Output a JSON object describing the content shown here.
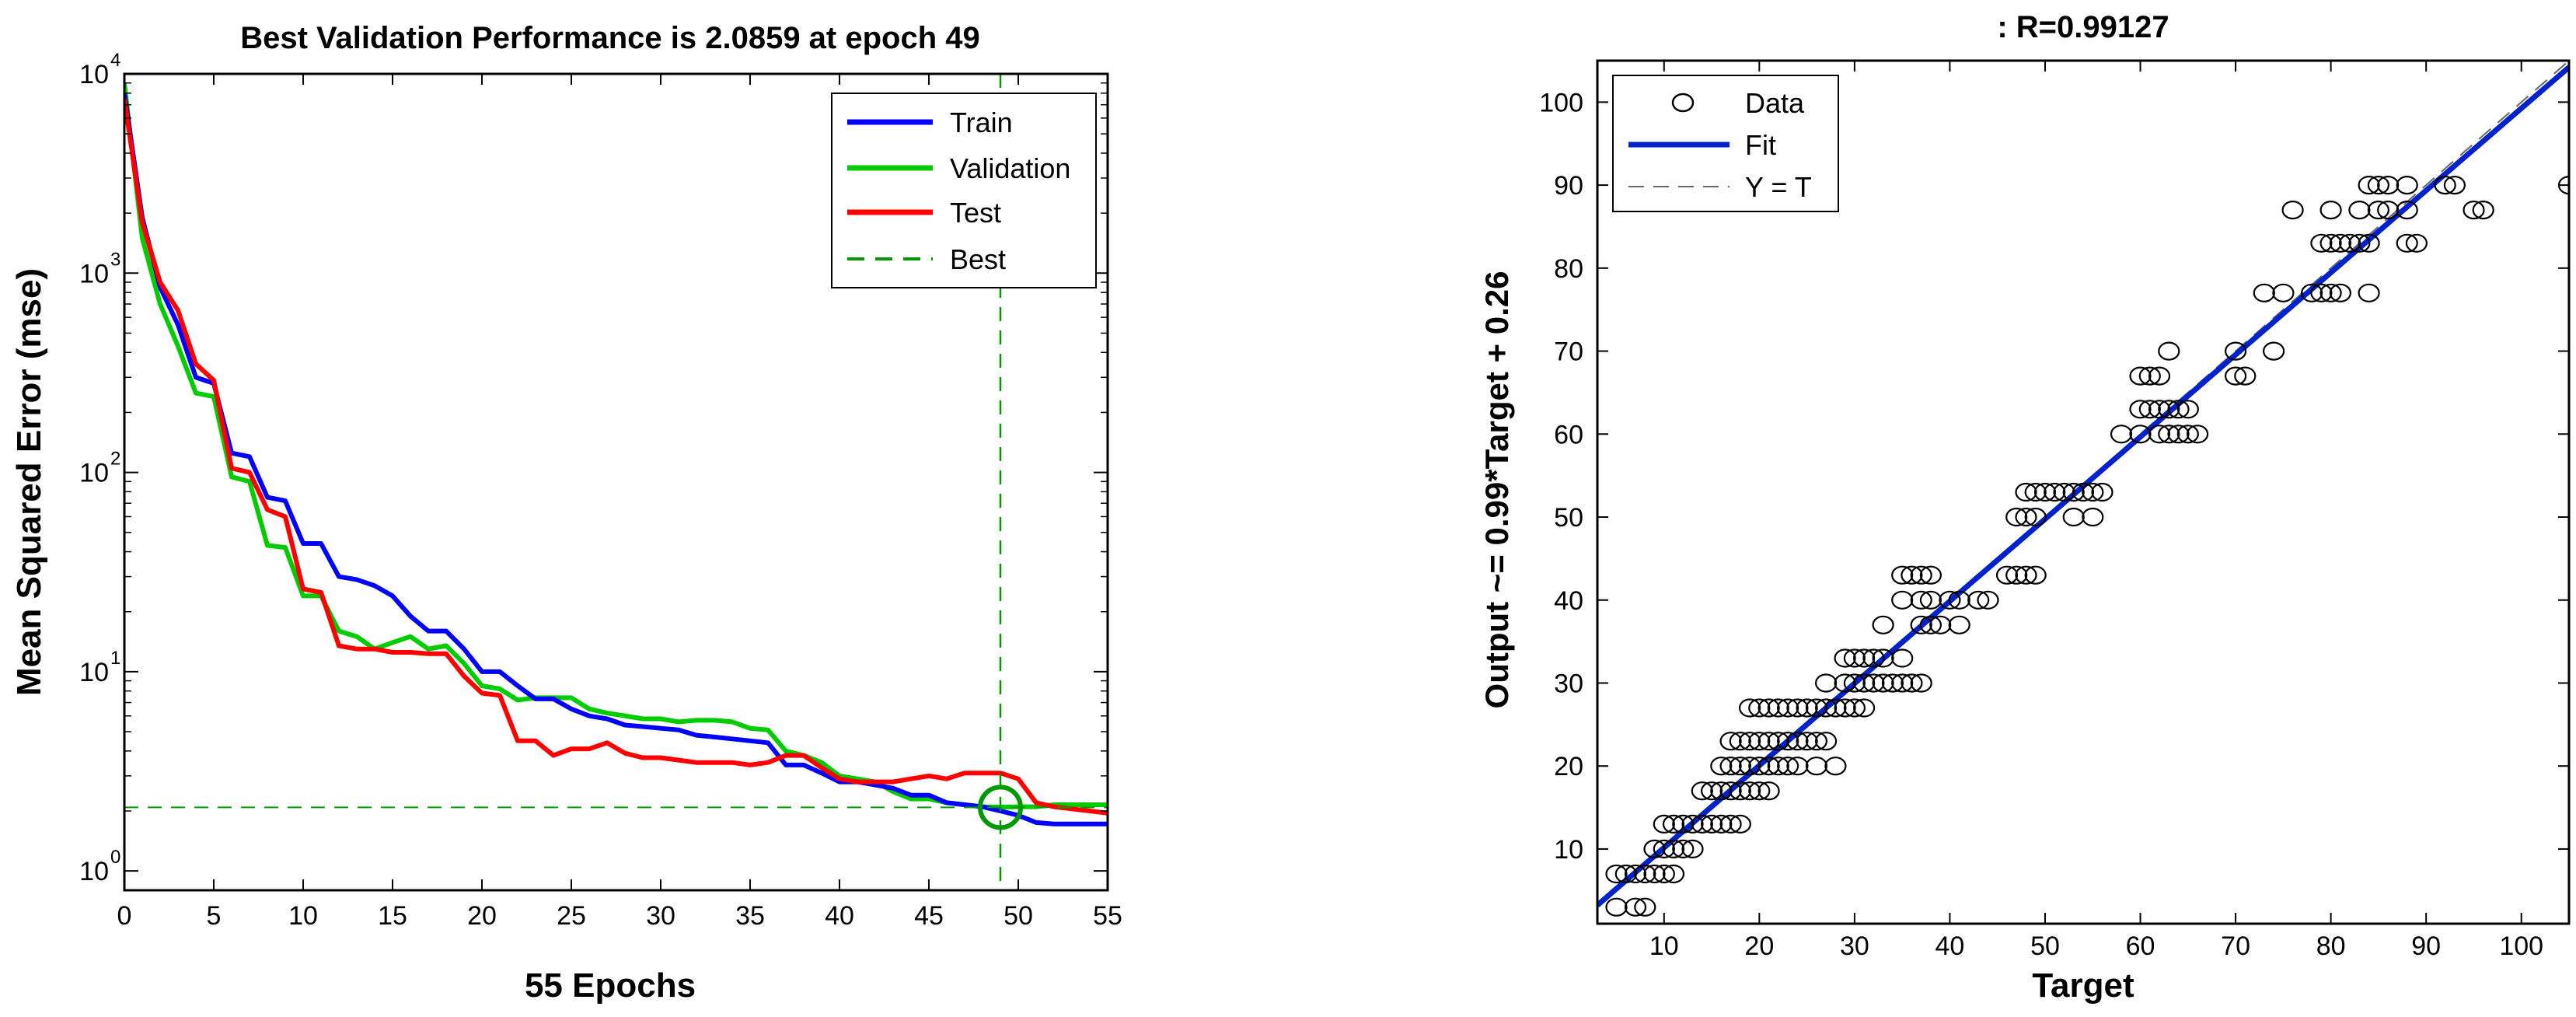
{
  "colors": {
    "train": "#0000ff",
    "validation": "#00cc00",
    "test": "#ff0000",
    "best": "#009900",
    "fit": "#0022cc",
    "axis": "#000000",
    "background": "#ffffff"
  },
  "chart_data": [
    {
      "type": "line",
      "title": "Best Validation Performance is 2.0859 at epoch 49",
      "xlabel": "55 Epochs",
      "ylabel": "Mean Squared Error  (mse)",
      "yscale": "log",
      "xlim": [
        0,
        55
      ],
      "ylim": [
        0.8,
        10000
      ],
      "xticks": [
        0,
        5,
        10,
        15,
        20,
        25,
        30,
        35,
        40,
        45,
        50,
        55
      ],
      "xtick_labels": [
        "0",
        "5",
        "10",
        "15",
        "20",
        "25",
        "30",
        "35",
        "40",
        "45",
        "50",
        "55"
      ],
      "ytick_base": "10",
      "ytick_exponents": [
        "0",
        "1",
        "2",
        "3",
        "4"
      ],
      "best": {
        "epoch": 49,
        "value": 2.0859,
        "label": "Best"
      },
      "legend": {
        "placement": "top-right",
        "entries": [
          "Train",
          "Validation",
          "Test",
          "Best"
        ]
      },
      "x": [
        0,
        1,
        2,
        3,
        4,
        5,
        6,
        7,
        8,
        9,
        10,
        11,
        12,
        13,
        14,
        15,
        16,
        17,
        18,
        19,
        20,
        21,
        22,
        23,
        24,
        25,
        26,
        27,
        28,
        29,
        30,
        31,
        32,
        33,
        34,
        35,
        36,
        37,
        38,
        39,
        40,
        41,
        42,
        43,
        44,
        45,
        46,
        47,
        48,
        49,
        50,
        51,
        52,
        53,
        54,
        55
      ],
      "series": [
        {
          "name": "Train",
          "values": [
            8000,
            1900,
            850,
            550,
            300,
            280,
            125,
            120,
            75,
            72,
            44,
            44,
            30,
            29,
            27,
            24,
            19,
            16,
            16,
            13,
            10,
            10,
            8.5,
            7.3,
            7.3,
            6.5,
            6,
            5.8,
            5.4,
            5.3,
            5.2,
            5.1,
            4.8,
            4.7,
            4.6,
            4.5,
            4.4,
            3.4,
            3.4,
            3.1,
            2.8,
            2.8,
            2.7,
            2.6,
            2.4,
            2.4,
            2.2,
            2.15,
            2.1,
            2.0,
            1.9,
            1.75,
            1.72,
            1.72,
            1.72,
            1.72
          ]
        },
        {
          "name": "Validation",
          "values": [
            9000,
            1500,
            700,
            430,
            250,
            240,
            95,
            90,
            43,
            42,
            24,
            24,
            16,
            15,
            13,
            14,
            15,
            13,
            13.5,
            11,
            8.5,
            8.2,
            7.2,
            7.4,
            7.4,
            7.4,
            6.5,
            6.2,
            6,
            5.8,
            5.8,
            5.6,
            5.7,
            5.7,
            5.6,
            5.2,
            5.1,
            4.0,
            3.8,
            3.5,
            3.0,
            2.9,
            2.8,
            2.5,
            2.3,
            2.3,
            2.2,
            2.15,
            2.1,
            2.09,
            2.1,
            2.1,
            2.15,
            2.15,
            2.15,
            2.15
          ]
        },
        {
          "name": "Test",
          "values": [
            7500,
            1800,
            900,
            650,
            350,
            290,
            105,
            100,
            65,
            60,
            26,
            25,
            13.5,
            13,
            13,
            12.5,
            12.5,
            12.3,
            12.3,
            9.5,
            7.8,
            7.6,
            4.5,
            4.5,
            3.8,
            4.1,
            4.1,
            4.4,
            3.9,
            3.7,
            3.7,
            3.6,
            3.5,
            3.5,
            3.5,
            3.4,
            3.5,
            3.8,
            3.8,
            3.3,
            2.9,
            2.8,
            2.8,
            2.8,
            2.9,
            3.0,
            2.9,
            3.1,
            3.1,
            3.1,
            2.9,
            2.2,
            2.1,
            2.05,
            2.0,
            1.95
          ]
        }
      ]
    },
    {
      "type": "scatter",
      "title": ": R=0.99127",
      "xlabel": "Target",
      "ylabel": "Output ~= 0.99*Target + 0.26",
      "xlim": [
        3,
        105
      ],
      "ylim": [
        1,
        105
      ],
      "xticks": [
        10,
        20,
        30,
        40,
        50,
        60,
        70,
        80,
        90,
        100
      ],
      "xtick_labels": [
        "10",
        "20",
        "30",
        "40",
        "50",
        "60",
        "70",
        "80",
        "90",
        "100"
      ],
      "yticks": [
        10,
        20,
        30,
        40,
        50,
        60,
        70,
        80,
        90,
        100
      ],
      "ytick_labels": [
        "10",
        "20",
        "30",
        "40",
        "50",
        "60",
        "70",
        "80",
        "90",
        "100"
      ],
      "fit": {
        "slope": 0.99,
        "intercept": 0.26
      },
      "legend": {
        "placement": "top-left",
        "entries": [
          "Data",
          "Fit",
          "Y = T"
        ]
      },
      "points": [
        [
          5,
          3
        ],
        [
          7,
          3
        ],
        [
          8,
          3
        ],
        [
          5,
          7
        ],
        [
          6,
          7
        ],
        [
          7,
          7
        ],
        [
          8,
          7
        ],
        [
          9,
          7
        ],
        [
          10,
          7
        ],
        [
          11,
          7
        ],
        [
          9,
          10
        ],
        [
          10,
          10
        ],
        [
          11,
          10
        ],
        [
          12,
          10
        ],
        [
          13,
          10
        ],
        [
          10,
          13
        ],
        [
          11,
          13
        ],
        [
          12,
          13
        ],
        [
          13,
          13
        ],
        [
          14,
          13
        ],
        [
          15,
          13
        ],
        [
          16,
          13
        ],
        [
          17,
          13
        ],
        [
          18,
          13
        ],
        [
          14,
          17
        ],
        [
          15,
          17
        ],
        [
          16,
          17
        ],
        [
          17,
          17
        ],
        [
          18,
          17
        ],
        [
          19,
          17
        ],
        [
          20,
          17
        ],
        [
          21,
          17
        ],
        [
          16,
          20
        ],
        [
          17,
          20
        ],
        [
          18,
          20
        ],
        [
          19,
          20
        ],
        [
          20,
          20
        ],
        [
          21,
          20
        ],
        [
          22,
          20
        ],
        [
          23,
          20
        ],
        [
          24,
          20
        ],
        [
          26,
          20
        ],
        [
          28,
          20
        ],
        [
          17,
          23
        ],
        [
          18,
          23
        ],
        [
          19,
          23
        ],
        [
          20,
          23
        ],
        [
          21,
          23
        ],
        [
          22,
          23
        ],
        [
          23,
          23
        ],
        [
          24,
          23
        ],
        [
          25,
          23
        ],
        [
          26,
          23
        ],
        [
          27,
          23
        ],
        [
          19,
          27
        ],
        [
          20,
          27
        ],
        [
          21,
          27
        ],
        [
          22,
          27
        ],
        [
          23,
          27
        ],
        [
          24,
          27
        ],
        [
          25,
          27
        ],
        [
          26,
          27
        ],
        [
          27,
          27
        ],
        [
          28,
          27
        ],
        [
          29,
          27
        ],
        [
          30,
          27
        ],
        [
          31,
          27
        ],
        [
          27,
          30
        ],
        [
          29,
          30
        ],
        [
          30,
          30
        ],
        [
          31,
          30
        ],
        [
          32,
          30
        ],
        [
          33,
          30
        ],
        [
          34,
          30
        ],
        [
          35,
          30
        ],
        [
          36,
          30
        ],
        [
          37,
          30
        ],
        [
          29,
          33
        ],
        [
          30,
          33
        ],
        [
          31,
          33
        ],
        [
          32,
          33
        ],
        [
          33,
          33
        ],
        [
          35,
          33
        ],
        [
          33,
          37
        ],
        [
          37,
          37
        ],
        [
          38,
          37
        ],
        [
          39,
          37
        ],
        [
          41,
          37
        ],
        [
          35,
          40
        ],
        [
          37,
          40
        ],
        [
          38,
          40
        ],
        [
          40,
          40
        ],
        [
          41,
          40
        ],
        [
          43,
          40
        ],
        [
          44,
          40
        ],
        [
          35,
          43
        ],
        [
          36,
          43
        ],
        [
          37,
          43
        ],
        [
          38,
          43
        ],
        [
          46,
          43
        ],
        [
          47,
          43
        ],
        [
          48,
          43
        ],
        [
          49,
          43
        ],
        [
          47,
          50
        ],
        [
          48,
          50
        ],
        [
          49,
          50
        ],
        [
          53,
          50
        ],
        [
          55,
          50
        ],
        [
          48,
          53
        ],
        [
          49,
          53
        ],
        [
          50,
          53
        ],
        [
          51,
          53
        ],
        [
          52,
          53
        ],
        [
          53,
          53
        ],
        [
          54,
          53
        ],
        [
          55,
          53
        ],
        [
          56,
          53
        ],
        [
          58,
          60
        ],
        [
          60,
          60
        ],
        [
          62,
          60
        ],
        [
          63,
          60
        ],
        [
          64,
          60
        ],
        [
          65,
          60
        ],
        [
          66,
          60
        ],
        [
          60,
          63
        ],
        [
          61,
          63
        ],
        [
          62,
          63
        ],
        [
          63,
          63
        ],
        [
          64,
          63
        ],
        [
          65,
          63
        ],
        [
          60,
          67
        ],
        [
          61,
          67
        ],
        [
          62,
          67
        ],
        [
          70,
          67
        ],
        [
          71,
          67
        ],
        [
          63,
          70
        ],
        [
          70,
          70
        ],
        [
          74,
          70
        ],
        [
          73,
          77
        ],
        [
          75,
          77
        ],
        [
          78,
          77
        ],
        [
          79,
          77
        ],
        [
          80,
          77
        ],
        [
          81,
          77
        ],
        [
          84,
          77
        ],
        [
          76,
          87
        ],
        [
          80,
          87
        ],
        [
          83,
          87
        ],
        [
          85,
          87
        ],
        [
          86,
          87
        ],
        [
          88,
          87
        ],
        [
          95,
          87
        ],
        [
          96,
          87
        ],
        [
          79,
          83
        ],
        [
          80,
          83
        ],
        [
          81,
          83
        ],
        [
          82,
          83
        ],
        [
          83,
          83
        ],
        [
          84,
          83
        ],
        [
          88,
          83
        ],
        [
          89,
          83
        ],
        [
          84,
          90
        ],
        [
          85,
          90
        ],
        [
          86,
          90
        ],
        [
          88,
          90
        ],
        [
          92,
          90
        ],
        [
          93,
          90
        ],
        [
          105,
          90
        ]
      ]
    }
  ]
}
